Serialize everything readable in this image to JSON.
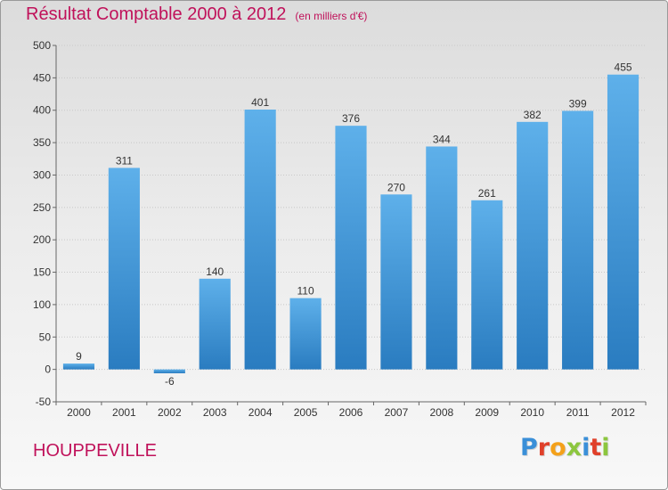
{
  "header": {
    "title": "Résultat Comptable 2000 à 2012",
    "subtitle": "(en milliers d'€)"
  },
  "footer": {
    "commune": "HOUPPEVILLE",
    "logo_letters": [
      "P",
      "r",
      "o",
      "x",
      "i",
      "t",
      "i"
    ],
    "logo_colors": [
      "#3a8fd8",
      "#e0402a",
      "#f4a11a",
      "#8cc63e",
      "#3a8fd8",
      "#e0402a",
      "#8cc63e"
    ]
  },
  "colors": {
    "bar_light": "#5eb0ea",
    "bar_dark": "#2a7cc0",
    "title": "#c0115a"
  },
  "chart_data": {
    "type": "bar",
    "title": "Résultat Comptable 2000 à 2012",
    "subtitle": "(en milliers d'€)",
    "categories": [
      "2000",
      "2001",
      "2002",
      "2003",
      "2004",
      "2005",
      "2006",
      "2007",
      "2008",
      "2009",
      "2010",
      "2011",
      "2012"
    ],
    "values": [
      9,
      311,
      -6,
      140,
      401,
      110,
      376,
      270,
      344,
      261,
      382,
      399,
      455
    ],
    "value_labels": [
      "9",
      "311",
      "-6",
      "140",
      "401",
      "110",
      "376",
      "270",
      "344",
      "261",
      "382",
      "399",
      "455"
    ],
    "ylim": [
      -50,
      500
    ],
    "yticks": [
      -50,
      0,
      50,
      100,
      150,
      200,
      250,
      300,
      350,
      400,
      450,
      500
    ],
    "ytick_labels": [
      "-50",
      "0",
      "50",
      "100",
      "150",
      "200",
      "250",
      "300",
      "350",
      "400",
      "450",
      "500"
    ],
    "grid": true,
    "xlabel": "",
    "ylabel": ""
  }
}
